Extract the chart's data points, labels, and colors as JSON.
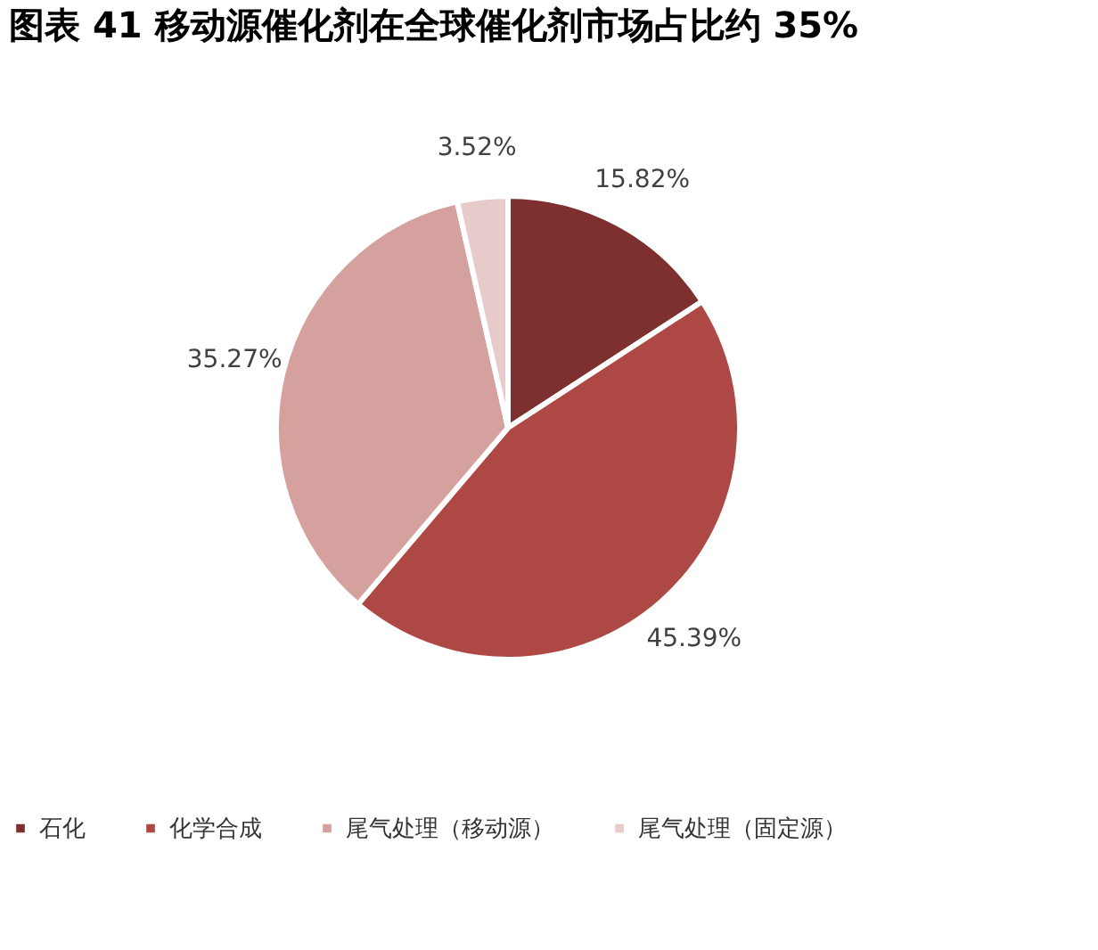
{
  "chart_data": {
    "type": "pie",
    "title": "图表 41 移动源催化剂在全球催化剂市场占比约 35%",
    "categories": [
      "石化",
      "化学合成",
      "尾气处理（移动源）",
      "尾气处理（固定源）"
    ],
    "values": [
      15.82,
      45.39,
      35.27,
      3.52
    ],
    "colors": [
      "#7e2f2f",
      "#ad4845",
      "#d4a19f",
      "#e7cbcb"
    ],
    "value_labels": [
      "15.82%",
      "45.39%",
      "35.27%",
      "3.52%"
    ],
    "legend": "bottom"
  }
}
